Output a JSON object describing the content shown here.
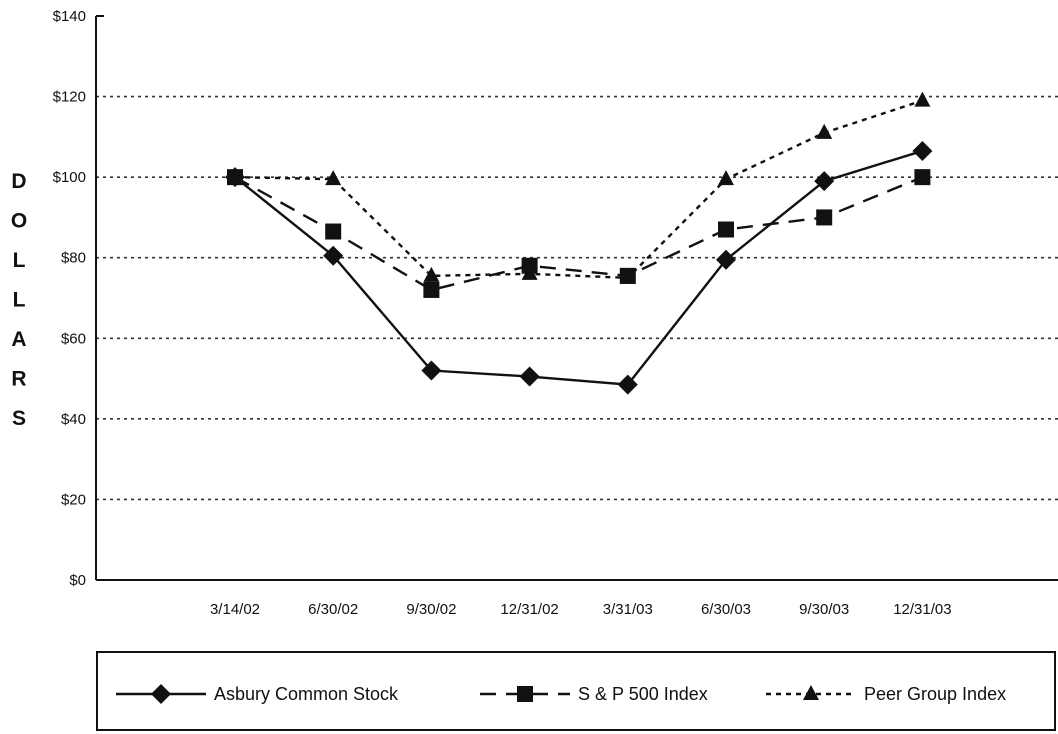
{
  "chart_data": {
    "type": "line",
    "title": "",
    "xlabel": "",
    "ylabel": "DOLLARS",
    "categories": [
      "3/14/02",
      "6/30/02",
      "9/30/02",
      "12/31/02",
      "3/31/03",
      "6/30/03",
      "9/30/03",
      "12/31/03"
    ],
    "y_ticks": [
      "$0",
      "$20",
      "$40",
      "$60",
      "$80",
      "$100",
      "$120",
      "$140"
    ],
    "ylim": [
      0,
      140
    ],
    "grid": "horizontal dotted",
    "legend_position": "bottom",
    "series": [
      {
        "name": "Asbury Common Stock",
        "marker": "diamond",
        "line": "solid",
        "color": "#111111",
        "values": [
          100,
          80.5,
          52,
          50.5,
          48.5,
          79.5,
          99,
          106.5
        ]
      },
      {
        "name": "S & P 500 Index",
        "marker": "square",
        "line": "dashed",
        "color": "#111111",
        "values": [
          100,
          86.5,
          72,
          78,
          75.5,
          87,
          90,
          100
        ]
      },
      {
        "name": "Peer Group Index",
        "marker": "triangle",
        "line": "dotted",
        "color": "#111111",
        "values": [
          100,
          99.5,
          75.5,
          76,
          75,
          99.5,
          111,
          119
        ]
      }
    ]
  }
}
